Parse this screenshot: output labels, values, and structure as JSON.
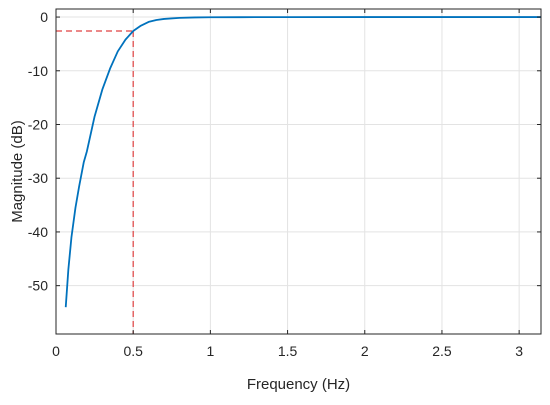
{
  "chart_data": {
    "type": "line",
    "xlabel": "Frequency (Hz)",
    "ylabel": "Magnitude (dB)",
    "xlim": [
      0,
      3.1416
    ],
    "ylim": [
      -59,
      1.5
    ],
    "xticks": [
      0,
      0.5,
      1,
      1.5,
      2,
      2.5,
      3
    ],
    "xtick_labels": [
      "0",
      "0.5",
      "1",
      "1.5",
      "2",
      "2.5",
      "3"
    ],
    "yticks": [
      0,
      -10,
      -20,
      -30,
      -40,
      -50
    ],
    "ytick_labels": [
      "0",
      "-10",
      "-20",
      "-30",
      "-40",
      "-50"
    ],
    "grid": true,
    "legend": "none",
    "series": [
      {
        "color": "#0072bd",
        "x": [
          0.063,
          0.08,
          0.1,
          0.126,
          0.15,
          0.18,
          0.2,
          0.25,
          0.3,
          0.35,
          0.4,
          0.45,
          0.5,
          0.55,
          0.6,
          0.65,
          0.7,
          0.8,
          0.9,
          1.0,
          1.2,
          1.5,
          2.0,
          2.5,
          3.0,
          3.1416
        ],
        "y": [
          -54,
          -47,
          -41,
          -35.5,
          -31.5,
          -27,
          -25,
          -18.5,
          -13.5,
          -9.6,
          -6.4,
          -4.2,
          -2.6,
          -1.6,
          -0.9,
          -0.55,
          -0.35,
          -0.15,
          -0.07,
          -0.04,
          -0.02,
          -0.01,
          0,
          0,
          0,
          0
        ]
      }
    ],
    "annotations": [
      {
        "type": "cutoff-marker",
        "x": 0.5,
        "y": -2.6,
        "color": "#e04040",
        "style": "dashed"
      }
    ]
  }
}
